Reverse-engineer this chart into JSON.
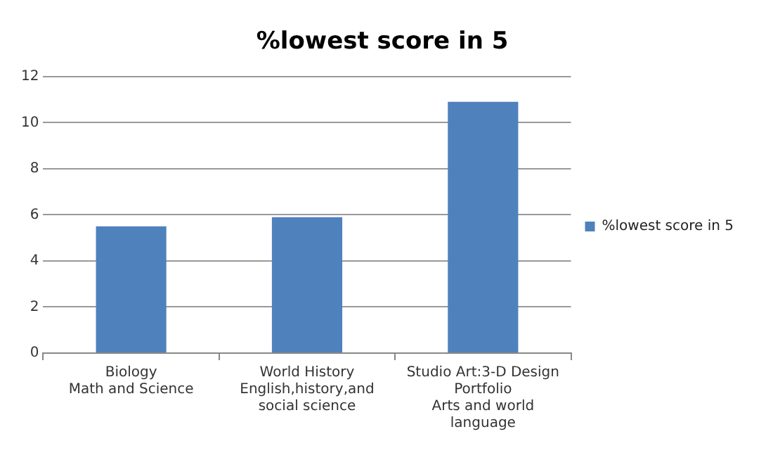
{
  "chart_data": {
    "type": "bar",
    "title": "%lowest score in 5",
    "categories": [
      "Biology\nMath and Science",
      "World History\nEnglish,history,and\nsocial science",
      "Studio Art:3-D Design\nPortfolio\nArts and world\nlanguage"
    ],
    "series": [
      {
        "name": "%lowest score in 5",
        "color": "#4f81bd",
        "values": [
          5.5,
          5.9,
          10.9
        ]
      }
    ],
    "ylim": [
      0,
      12
    ],
    "yticks": [
      0,
      2,
      4,
      6,
      8,
      10,
      12
    ],
    "grid": "y",
    "legend": "right"
  }
}
